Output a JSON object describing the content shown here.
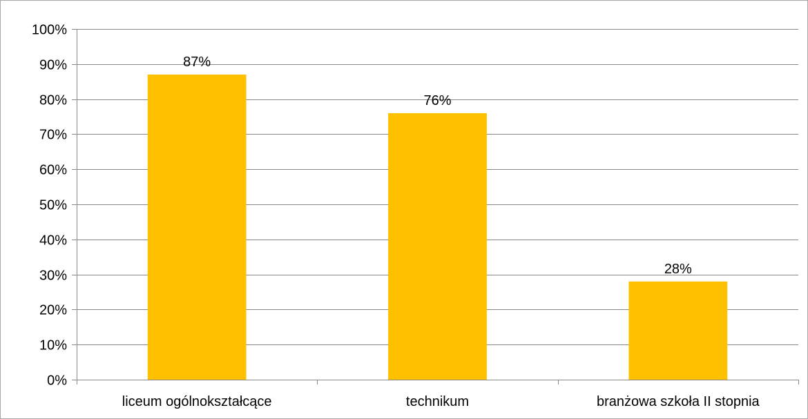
{
  "chart_data": {
    "type": "bar",
    "categories": [
      "liceum ogólnokształcące",
      "technikum",
      "branżowa szkoła II stopnia"
    ],
    "values": [
      87,
      76,
      28
    ],
    "data_labels": [
      "87%",
      "76%",
      "28%"
    ],
    "y_ticks": [
      0,
      10,
      20,
      30,
      40,
      50,
      60,
      70,
      80,
      90,
      100
    ],
    "y_tick_labels": [
      "0%",
      "10%",
      "20%",
      "30%",
      "40%",
      "50%",
      "60%",
      "70%",
      "80%",
      "90%",
      "100%"
    ],
    "ylim": [
      0,
      100
    ],
    "grid": true,
    "legend": "none",
    "colors": {
      "bar": "#FFC000",
      "grid": "#868686",
      "axis": "#868686"
    }
  }
}
